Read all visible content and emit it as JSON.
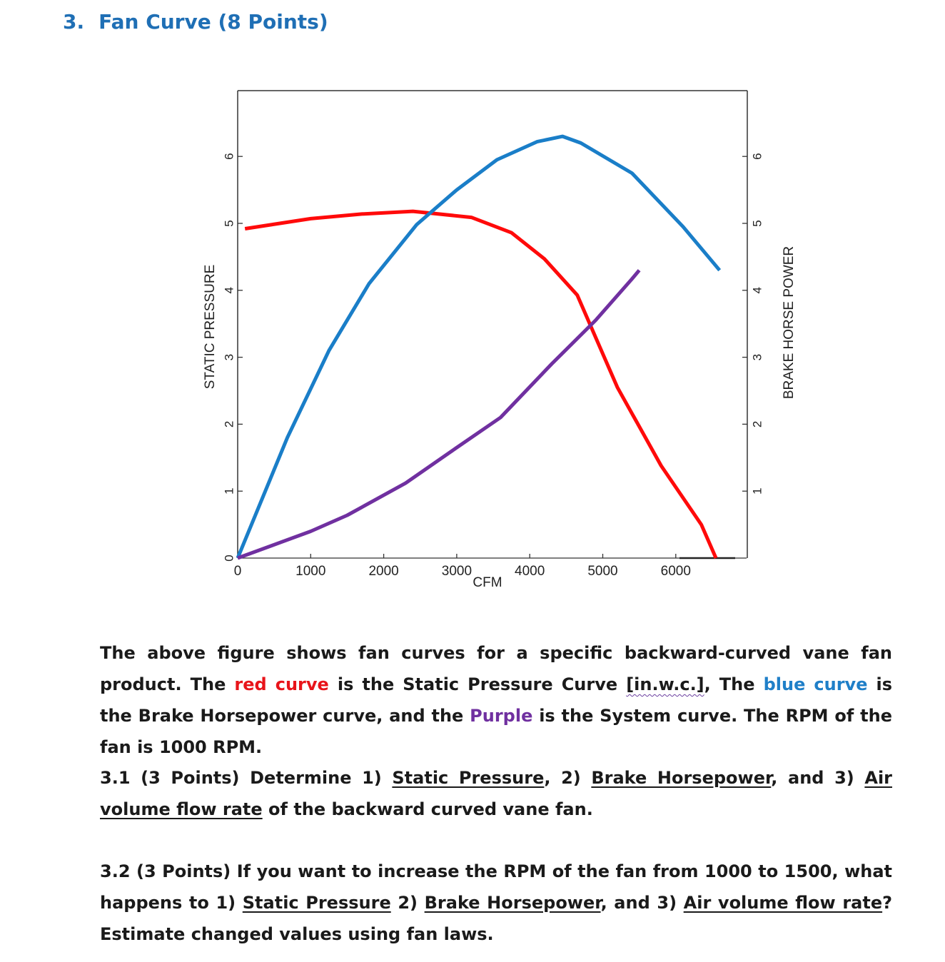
{
  "heading": {
    "number": "3.",
    "title": "Fan Curve (8 Points)"
  },
  "chart_data": {
    "type": "line",
    "x_axis": {
      "label": "CFM",
      "range": [
        0,
        6900
      ],
      "ticks": [
        0,
        1000,
        2000,
        3000,
        4000,
        5000,
        6000
      ],
      "tick_labels": [
        "0",
        "1000",
        "2000",
        "3000",
        "4000",
        "5000",
        "6000"
      ]
    },
    "y_axis_left": {
      "label": "STATIC PRESSURE",
      "range": [
        0,
        7
      ],
      "ticks": [
        0,
        1,
        2,
        3,
        4,
        5,
        6
      ],
      "tick_labels": [
        "0",
        "1",
        "2",
        "3",
        "4",
        "5",
        "6"
      ]
    },
    "y_axis_right": {
      "label": "BRAKE HORSE POWER",
      "range": [
        0,
        7
      ],
      "ticks": [
        1,
        2,
        3,
        4,
        5,
        6
      ],
      "tick_labels": [
        "1",
        "2",
        "3",
        "4",
        "5",
        "6"
      ]
    },
    "series": [
      {
        "name": "Static Pressure Curve",
        "color": "#ff0a0a",
        "x": [
          100,
          1000,
          1700,
          2400,
          3200,
          3750,
          4200,
          4650,
          5200,
          5800,
          6350,
          6550
        ],
        "y": [
          4.92,
          5.07,
          5.14,
          5.18,
          5.09,
          4.86,
          4.47,
          3.93,
          2.55,
          1.38,
          0.5,
          0.0
        ]
      },
      {
        "name": "Brake Horsepower Curve",
        "color": "#1a7ec8",
        "x": [
          0,
          680,
          1250,
          1800,
          2450,
          3000,
          3550,
          4100,
          4450,
          4700,
          5400,
          6100,
          6600
        ],
        "y": [
          0.0,
          1.8,
          3.1,
          4.1,
          4.98,
          5.5,
          5.95,
          6.22,
          6.3,
          6.2,
          5.75,
          4.95,
          4.3
        ]
      },
      {
        "name": "System Curve",
        "color": "#7030a0",
        "x": [
          0,
          1000,
          1500,
          2300,
          3000,
          3600,
          4300,
          4900,
          5400,
          5500
        ],
        "y": [
          0.0,
          0.4,
          0.64,
          1.12,
          1.65,
          2.1,
          2.9,
          3.55,
          4.17,
          4.3
        ]
      }
    ]
  },
  "para1": {
    "t1": "The above figure shows fan curves for a specific backward-curved vane fan product. The ",
    "red": "red curve",
    "t2": " is the Static Pressure Curve ",
    "unit": "[in.w.c.]",
    "t3": ", The ",
    "blue": "blue curve",
    "t4": " is the Brake Horsepower curve, and the ",
    "purple": "Purple",
    "t5": " is the System curve. The RPM of the fan is 1000 RPM."
  },
  "q31": {
    "lead": "3.1 (3 Points) Determine 1) ",
    "u1": "Static Pressure",
    "m1": ", 2) ",
    "u2": "Brake Horsepower",
    "m2": ", and 3) ",
    "u3": "Air volume flow rate",
    "end": " of the backward curved vane fan."
  },
  "q32": {
    "lead": "3.2 (3 Points) If you want to increase the RPM of the fan from 1000 to 1500, what happens to 1) ",
    "u1": "Static Pressure",
    "m1": " 2) ",
    "u2": "Brake Horsepower",
    "m2": ", and 3) ",
    "u3": "Air volume flow rate",
    "end": "? Estimate changed values using fan laws."
  }
}
